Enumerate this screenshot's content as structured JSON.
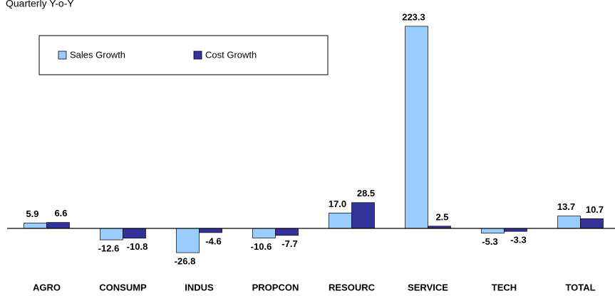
{
  "chart_data": {
    "type": "bar",
    "title": "Quarterly Y-o-Y",
    "categories": [
      "AGRO",
      "CONSUMP",
      "INDUS",
      "PROPCON",
      "RESOURC",
      "SERVICE",
      "TECH",
      "TOTAL"
    ],
    "series": [
      {
        "name": "Sales Growth",
        "color": "#99ccff",
        "values": [
          5.9,
          -12.6,
          -26.8,
          -10.6,
          17.0,
          223.3,
          -5.3,
          13.7
        ],
        "value_labels": [
          "5.9",
          "-12.6",
          "-26.8",
          "-10.6",
          "17.0",
          "223.3",
          "-5.3",
          "13.7"
        ]
      },
      {
        "name": "Cost Growth",
        "color": "#333399",
        "values": [
          6.6,
          -10.8,
          -4.6,
          -7.7,
          28.5,
          2.5,
          -3.3,
          10.7
        ],
        "value_labels": [
          "6.6",
          "-10.8",
          "-4.6",
          "-7.7",
          "28.5",
          "2.5",
          "-3.3",
          "10.7"
        ]
      }
    ],
    "ylim": [
      -40,
      230
    ],
    "legend": "top-left"
  }
}
